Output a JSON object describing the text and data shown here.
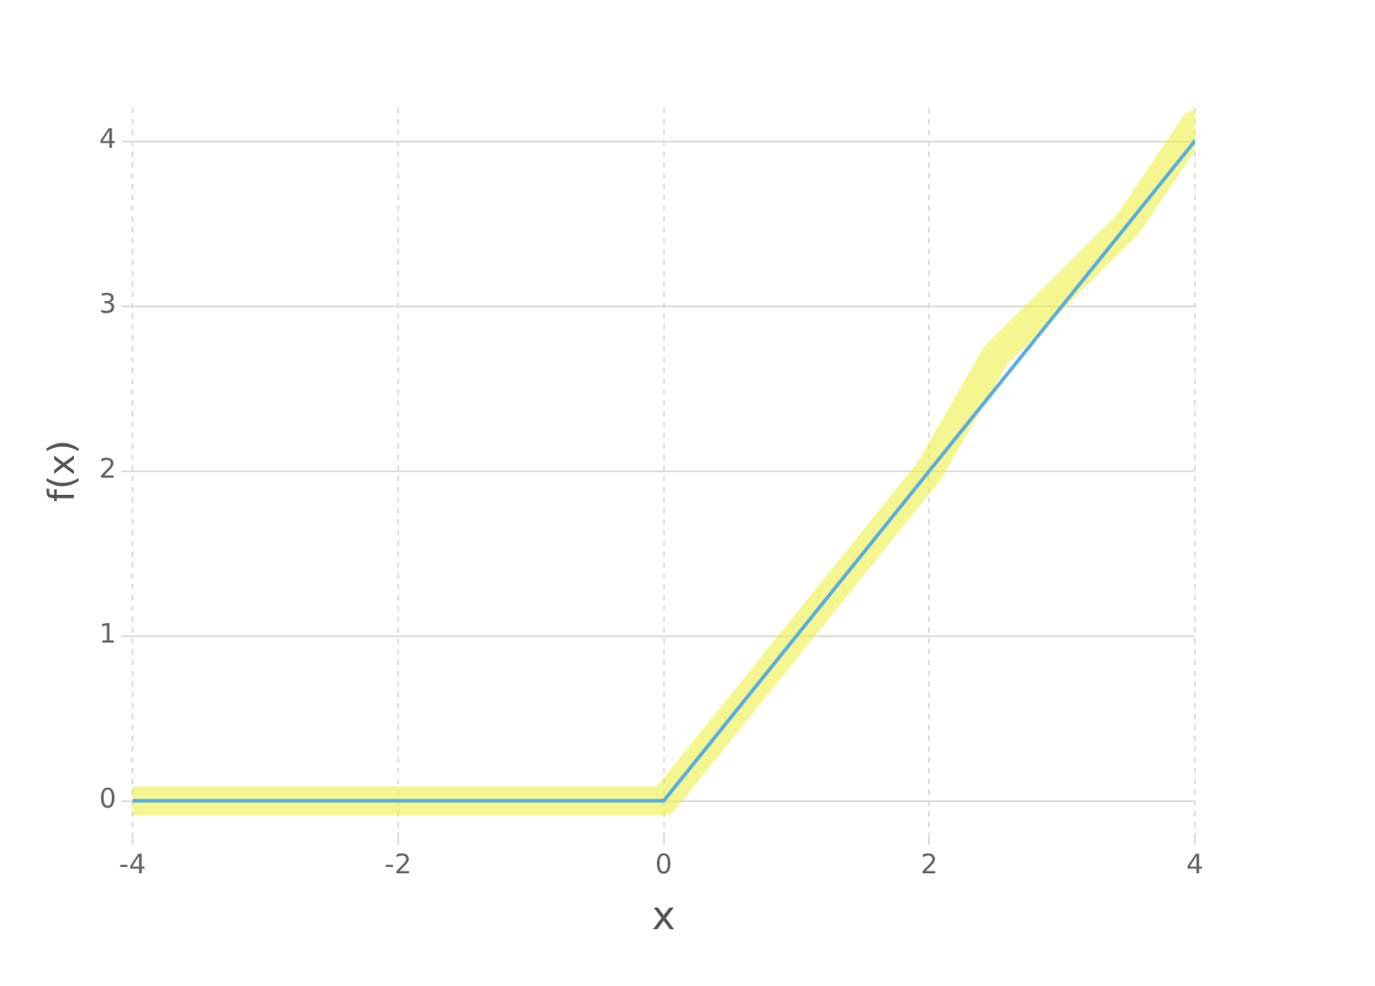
{
  "chart_data": {
    "type": "line",
    "xlabel": "x",
    "ylabel": "f(x)",
    "series": [
      {
        "color": "#eef046",
        "x": [
          -4,
          -2,
          -1,
          0,
          0.5,
          1,
          2,
          2.5,
          3,
          3.5,
          4
        ],
        "values": [
          0,
          0,
          0,
          0,
          0.5,
          1,
          2,
          2.7,
          3.1,
          3.5,
          4.1
        ]
      },
      {
        "color": "#5aaee0",
        "x": [
          -4,
          0,
          4
        ],
        "values": [
          0,
          0,
          4
        ]
      }
    ],
    "xlim": [
      -4,
      4
    ],
    "ylim": [
      -0.2,
      4.2
    ],
    "xticks": [
      -4,
      -2,
      0,
      2,
      4
    ],
    "yticks": [
      0,
      1,
      2,
      3,
      4
    ],
    "grid": true,
    "legend": false,
    "marker": "none",
    "line_style": "solid"
  }
}
